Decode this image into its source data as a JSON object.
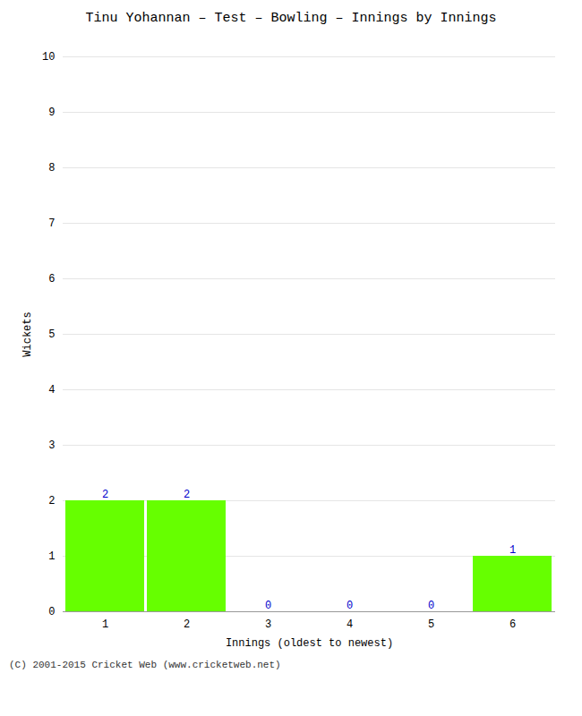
{
  "chart_data": {
    "type": "bar",
    "title": "Tinu Yohannan – Test – Bowling – Innings by Innings",
    "xlabel": "Innings (oldest to newest)",
    "ylabel": "Wickets",
    "categories": [
      1,
      2,
      3,
      4,
      5,
      6
    ],
    "values": [
      2,
      2,
      0,
      0,
      0,
      1
    ],
    "color": "#66ff00",
    "ylim": [
      0,
      10
    ],
    "yticks": [
      0,
      1,
      2,
      3,
      4,
      5,
      6,
      7,
      8,
      9,
      10
    ],
    "grid": true,
    "data_labels": true,
    "annotations": [
      "(C) 2001-2015 Cricket Web (www.cricketweb.net)"
    ]
  }
}
